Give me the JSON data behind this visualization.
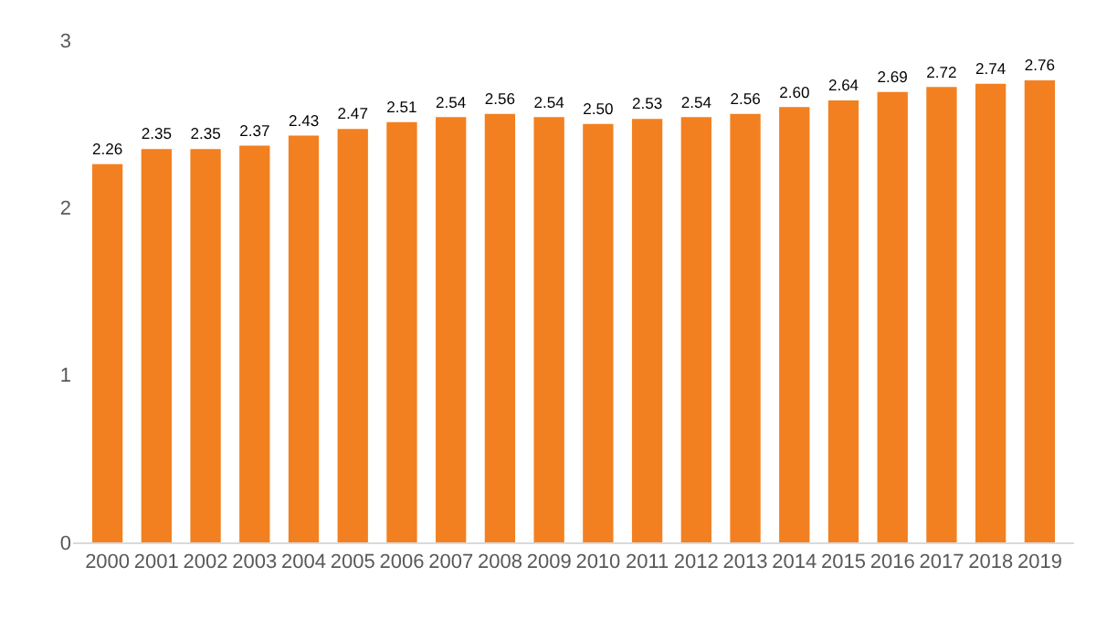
{
  "chart_data": {
    "type": "bar",
    "categories": [
      "2000",
      "2001",
      "2002",
      "2003",
      "2004",
      "2005",
      "2006",
      "2007",
      "2008",
      "2009",
      "2010",
      "2011",
      "2012",
      "2013",
      "2014",
      "2015",
      "2016",
      "2017",
      "2018",
      "2019"
    ],
    "values": [
      2.26,
      2.35,
      2.35,
      2.37,
      2.43,
      2.47,
      2.51,
      2.54,
      2.56,
      2.54,
      2.5,
      2.53,
      2.54,
      2.56,
      2.6,
      2.64,
      2.69,
      2.72,
      2.74,
      2.76
    ],
    "value_labels": [
      "2.26",
      "2.35",
      "2.35",
      "2.37",
      "2.43",
      "2.47",
      "2.51",
      "2.54",
      "2.56",
      "2.54",
      "2.50",
      "2.53",
      "2.54",
      "2.56",
      "2.60",
      "2.64",
      "2.69",
      "2.72",
      "2.74",
      "2.76"
    ],
    "color": "#f28020",
    "ylim": [
      0,
      3
    ],
    "yticks": [
      0,
      1,
      2,
      3
    ],
    "grid": false
  }
}
